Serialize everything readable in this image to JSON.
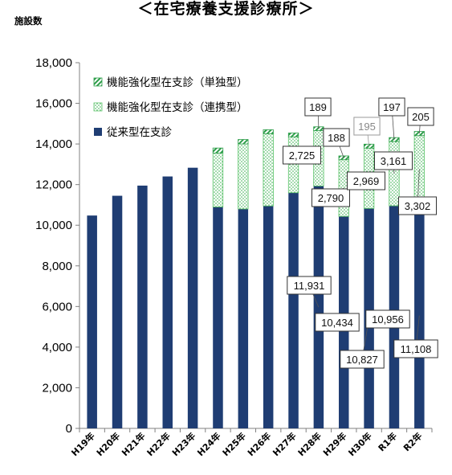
{
  "page": {
    "title": "＜在宅療養支援診療所＞"
  },
  "colors": {
    "traditional": "#1f3d73",
    "rengai": "#5cc46a",
    "tandoku": "#2e9e4a"
  },
  "chart_data": {
    "type": "bar",
    "stacked": true,
    "ylabel": "施設数",
    "ylim": [
      0,
      18000
    ],
    "yticks": [
      0,
      2000,
      4000,
      6000,
      8000,
      10000,
      12000,
      14000,
      16000,
      18000
    ],
    "ytick_labels": [
      "0",
      "2,000",
      "4,000",
      "6,000",
      "8,000",
      "10,000",
      "12,000",
      "14,000",
      "16,000",
      "18,000"
    ],
    "categories": [
      "H19年",
      "H20年",
      "H21年",
      "H22年",
      "H23年",
      "H24年",
      "H25年",
      "H26年",
      "H27年",
      "H28年",
      "H29年",
      "H30年",
      "R1年",
      "R2年"
    ],
    "legend_position": "top-left",
    "series": [
      {
        "name": "従来型在支診",
        "pattern": "solid",
        "values": [
          10477,
          11450,
          11950,
          12400,
          12830,
          10900,
          10800,
          10950,
          11600,
          11931,
          10434,
          10827,
          10956,
          11108
        ]
      },
      {
        "name": "機能強化型在支診（連携型）",
        "pattern": "dots",
        "values": [
          0,
          0,
          0,
          0,
          0,
          2650,
          3200,
          3550,
          2750,
          2725,
          2790,
          2969,
          3161,
          3302
        ]
      },
      {
        "name": "機能強化型在支診（単独型）",
        "pattern": "stripes",
        "values": [
          0,
          0,
          0,
          0,
          0,
          250,
          220,
          200,
          190,
          189,
          188,
          195,
          197,
          205
        ]
      }
    ],
    "annotations": [
      {
        "text": "2,725",
        "category": "H28年",
        "series": "機能強化型在支診（連携型）"
      },
      {
        "text": "189",
        "category": "H28年",
        "series": "機能強化型在支診（単独型）"
      },
      {
        "text": "11,931",
        "category": "H28年",
        "series": "従来型在支診"
      },
      {
        "text": "2,790",
        "category": "H29年",
        "series": "機能強化型在支診（連携型）"
      },
      {
        "text": "188",
        "category": "H29年",
        "series": "機能強化型在支診（単独型）"
      },
      {
        "text": "10,434",
        "category": "H29年",
        "series": "従来型在支診"
      },
      {
        "text": "2,969",
        "category": "H30年",
        "series": "機能強化型在支診（連携型）"
      },
      {
        "text": "195",
        "category": "H30年",
        "series": "機能強化型在支診（単独型）",
        "muted": true
      },
      {
        "text": "10,827",
        "category": "H30年",
        "series": "従来型在支診"
      },
      {
        "text": "3,161",
        "category": "R1年",
        "series": "機能強化型在支診（連携型）"
      },
      {
        "text": "197",
        "category": "R1年",
        "series": "機能強化型在支診（単独型）"
      },
      {
        "text": "10,956",
        "category": "R1年",
        "series": "従来型在支診"
      },
      {
        "text": "3,302",
        "category": "R2年",
        "series": "機能強化型在支診（連携型）"
      },
      {
        "text": "205",
        "category": "R2年",
        "series": "機能強化型在支診（単独型）"
      },
      {
        "text": "11,108",
        "category": "R2年",
        "series": "従来型在支診"
      }
    ]
  }
}
